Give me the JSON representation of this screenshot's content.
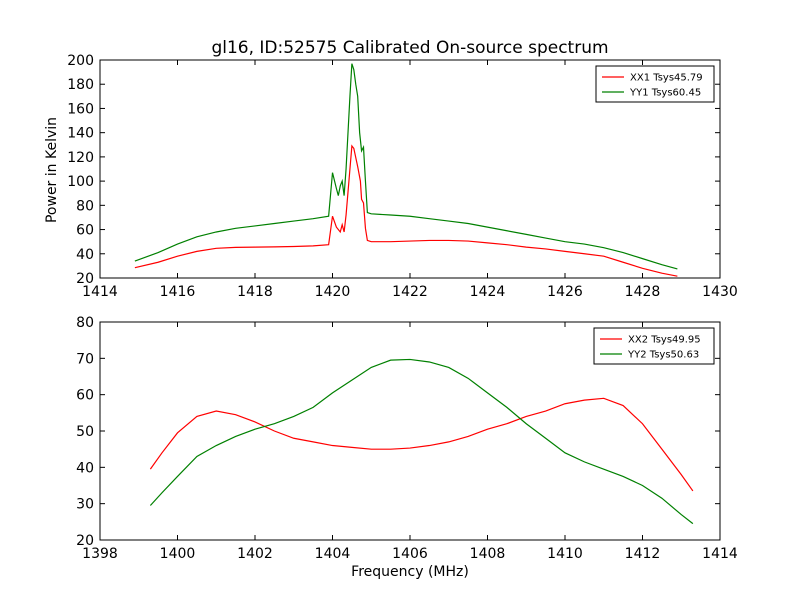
{
  "chart_data": [
    {
      "type": "line",
      "title": "gl16, ID:52575 Calibrated On-source spectrum",
      "xlabel": "",
      "ylabel": "Power in Kelvin",
      "xlim": [
        1414,
        1430
      ],
      "ylim": [
        20,
        200
      ],
      "xticks": [
        1414,
        1416,
        1418,
        1420,
        1422,
        1424,
        1426,
        1428,
        1430
      ],
      "yticks": [
        20,
        40,
        60,
        80,
        100,
        120,
        140,
        160,
        180,
        200
      ],
      "legend": "top-right",
      "grid": false,
      "series": [
        {
          "name": "XX1 Tsys45.79",
          "color": "#ff0000",
          "points": [
            [
              1414.9,
              28.5
            ],
            [
              1415.5,
              33
            ],
            [
              1416,
              38
            ],
            [
              1416.5,
              42
            ],
            [
              1417,
              44.5
            ],
            [
              1417.5,
              45.3
            ],
            [
              1418,
              45.5
            ],
            [
              1418.5,
              45.7
            ],
            [
              1419,
              46
            ],
            [
              1419.5,
              46.5
            ],
            [
              1419.9,
              47.5
            ],
            [
              1420.0,
              71
            ],
            [
              1420.1,
              62
            ],
            [
              1420.2,
              58
            ],
            [
              1420.25,
              64
            ],
            [
              1420.3,
              58
            ],
            [
              1420.35,
              72
            ],
            [
              1420.45,
              110
            ],
            [
              1420.5,
              129
            ],
            [
              1420.55,
              127
            ],
            [
              1420.65,
              112
            ],
            [
              1420.72,
              100
            ],
            [
              1420.75,
              85
            ],
            [
              1420.8,
              82
            ],
            [
              1420.85,
              61
            ],
            [
              1420.9,
              51
            ],
            [
              1421,
              50
            ],
            [
              1421.5,
              50
            ],
            [
              1422,
              50.5
            ],
            [
              1422.5,
              51
            ],
            [
              1423,
              51
            ],
            [
              1423.5,
              50.5
            ],
            [
              1424,
              49
            ],
            [
              1424.5,
              47.5
            ],
            [
              1425,
              45.5
            ],
            [
              1425.5,
              44
            ],
            [
              1426,
              42
            ],
            [
              1426.5,
              40
            ],
            [
              1427,
              38
            ],
            [
              1427.5,
              33
            ],
            [
              1428,
              28
            ],
            [
              1428.5,
              24
            ],
            [
              1428.9,
              21.5
            ]
          ]
        },
        {
          "name": "YY1 Tsys60.45",
          "color": "#008000",
          "points": [
            [
              1414.9,
              34
            ],
            [
              1415.5,
              41
            ],
            [
              1416,
              48
            ],
            [
              1416.5,
              54
            ],
            [
              1417,
              58
            ],
            [
              1417.5,
              61
            ],
            [
              1418,
              63
            ],
            [
              1418.5,
              65
            ],
            [
              1419,
              67
            ],
            [
              1419.5,
              69
            ],
            [
              1419.9,
              71
            ],
            [
              1420.0,
              107
            ],
            [
              1420.1,
              94
            ],
            [
              1420.15,
              88
            ],
            [
              1420.2,
              96
            ],
            [
              1420.25,
              100
            ],
            [
              1420.3,
              88
            ],
            [
              1420.35,
              110
            ],
            [
              1420.45,
              170
            ],
            [
              1420.5,
              197
            ],
            [
              1420.55,
              192
            ],
            [
              1420.6,
              180
            ],
            [
              1420.65,
              170
            ],
            [
              1420.7,
              140
            ],
            [
              1420.75,
              125
            ],
            [
              1420.8,
              128
            ],
            [
              1420.85,
              100
            ],
            [
              1420.9,
              74
            ],
            [
              1421,
              73
            ],
            [
              1421.5,
              72
            ],
            [
              1422,
              71
            ],
            [
              1422.5,
              69
            ],
            [
              1423,
              67
            ],
            [
              1423.5,
              65
            ],
            [
              1424,
              62
            ],
            [
              1424.5,
              59
            ],
            [
              1425,
              56
            ],
            [
              1425.5,
              53
            ],
            [
              1426,
              50
            ],
            [
              1426.5,
              48
            ],
            [
              1427,
              45
            ],
            [
              1427.5,
              41
            ],
            [
              1428,
              36
            ],
            [
              1428.5,
              31
            ],
            [
              1428.9,
              27.5
            ]
          ]
        }
      ]
    },
    {
      "type": "line",
      "title": "",
      "xlabel": "Frequency (MHz)",
      "ylabel": "",
      "xlim": [
        1398,
        1414
      ],
      "ylim": [
        20,
        80
      ],
      "xticks": [
        1398,
        1400,
        1402,
        1404,
        1406,
        1408,
        1410,
        1412,
        1414
      ],
      "yticks": [
        20,
        30,
        40,
        50,
        60,
        70,
        80
      ],
      "legend": "top-right",
      "grid": false,
      "series": [
        {
          "name": "XX2 Tsys49.95",
          "color": "#ff0000",
          "points": [
            [
              1399.3,
              39.5
            ],
            [
              1399.6,
              44
            ],
            [
              1400,
              49.5
            ],
            [
              1400.5,
              54
            ],
            [
              1401,
              55.5
            ],
            [
              1401.5,
              54.5
            ],
            [
              1402,
              52.5
            ],
            [
              1402.5,
              50
            ],
            [
              1403,
              48
            ],
            [
              1403.5,
              47
            ],
            [
              1404,
              46
            ],
            [
              1404.5,
              45.5
            ],
            [
              1405,
              45
            ],
            [
              1405.5,
              45
            ],
            [
              1406,
              45.3
            ],
            [
              1406.5,
              46
            ],
            [
              1407,
              47
            ],
            [
              1407.5,
              48.5
            ],
            [
              1408,
              50.5
            ],
            [
              1408.5,
              52
            ],
            [
              1409,
              54
            ],
            [
              1409.5,
              55.5
            ],
            [
              1410,
              57.5
            ],
            [
              1410.5,
              58.5
            ],
            [
              1411,
              59
            ],
            [
              1411.5,
              57
            ],
            [
              1412,
              52
            ],
            [
              1412.5,
              45
            ],
            [
              1413,
              38
            ],
            [
              1413.3,
              33.5
            ]
          ]
        },
        {
          "name": "YY2 Tsys50.63",
          "color": "#008000",
          "points": [
            [
              1399.3,
              29.5
            ],
            [
              1399.6,
              33
            ],
            [
              1400,
              37.5
            ],
            [
              1400.5,
              43
            ],
            [
              1401,
              46
            ],
            [
              1401.5,
              48.5
            ],
            [
              1402,
              50.5
            ],
            [
              1402.5,
              52
            ],
            [
              1403,
              54
            ],
            [
              1403.5,
              56.5
            ],
            [
              1404,
              60.5
            ],
            [
              1404.5,
              64
            ],
            [
              1405,
              67.5
            ],
            [
              1405.5,
              69.5
            ],
            [
              1406,
              69.7
            ],
            [
              1406.5,
              69
            ],
            [
              1407,
              67.5
            ],
            [
              1407.5,
              64.5
            ],
            [
              1408,
              60.5
            ],
            [
              1408.5,
              56.5
            ],
            [
              1409,
              52
            ],
            [
              1409.5,
              48
            ],
            [
              1410,
              44
            ],
            [
              1410.5,
              41.5
            ],
            [
              1411,
              39.5
            ],
            [
              1411.5,
              37.5
            ],
            [
              1412,
              35
            ],
            [
              1412.5,
              31.5
            ],
            [
              1413,
              27
            ],
            [
              1413.3,
              24.5
            ]
          ]
        }
      ]
    }
  ]
}
